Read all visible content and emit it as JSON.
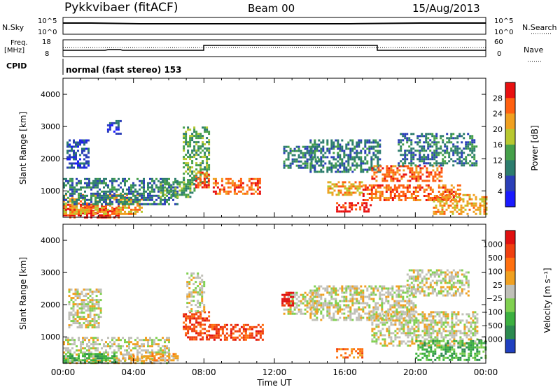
{
  "header": {
    "station": "Pykkvibaer (fitACF)",
    "beam": "Beam 00",
    "date": "15/Aug/2013"
  },
  "top_panels": {
    "nsky_label": "N.Sky",
    "nsky_ticks": [
      "10^5",
      "10^0"
    ],
    "nsearch_label": "N.Search",
    "nsearch_ticks": [
      "10^5",
      "10^0"
    ],
    "freq_label": "Freq.",
    "freq_unit": "[MHz]",
    "freq_ticks": [
      "18",
      "8"
    ],
    "nave_label": "Nave",
    "nave_ticks": [
      "60",
      "0"
    ],
    "cpid_label": "CPID",
    "cpid_text": "normal (fast stereo) 153"
  },
  "chart_data": [
    {
      "type": "heatmap",
      "title": "",
      "xlabel": "Time UT",
      "ylabel": "Slant Range [km]",
      "xlim_hours": [
        0,
        24
      ],
      "ylim": [
        180,
        4500
      ],
      "x_ticks": [
        "00:00",
        "04:00",
        "08:00",
        "12:00",
        "16:00",
        "20:00",
        "00:00"
      ],
      "y_ticks": [
        1000,
        2000,
        3000,
        4000
      ],
      "colorbar": {
        "label": "Power [dB]",
        "ticks": [
          "4",
          "8",
          "12",
          "16",
          "20",
          "24",
          "28"
        ],
        "colors": [
          "#1a1aff",
          "#2b3fb8",
          "#2d7d6e",
          "#46a04a",
          "#b8c830",
          "#f0a020",
          "#ff6010",
          "#e81010"
        ]
      },
      "regions": [
        {
          "t": [
            0.0,
            3.2
          ],
          "r": [
            200,
            600
          ],
          "level": 7
        },
        {
          "t": [
            0.0,
            4.5
          ],
          "r": [
            300,
            900
          ],
          "level": 5
        },
        {
          "t": [
            0.0,
            6.5
          ],
          "r": [
            600,
            1400
          ],
          "level": 2
        },
        {
          "t": [
            0.2,
            1.5
          ],
          "r": [
            1700,
            2600
          ],
          "level": 1
        },
        {
          "t": [
            2.5,
            3.3
          ],
          "r": [
            2800,
            3200
          ],
          "level": 1
        },
        {
          "t": [
            5.5,
            7.5
          ],
          "r": [
            800,
            1300
          ],
          "level": 3
        },
        {
          "t": [
            6.8,
            8.3
          ],
          "r": [
            1200,
            3000
          ],
          "level": 3
        },
        {
          "t": [
            7.5,
            8.3
          ],
          "r": [
            1100,
            1600
          ],
          "level": 6
        },
        {
          "t": [
            8.5,
            11.2
          ],
          "r": [
            900,
            1400
          ],
          "level": 6
        },
        {
          "t": [
            12.5,
            14.5
          ],
          "r": [
            1700,
            2400
          ],
          "level": 2
        },
        {
          "t": [
            14.0,
            18.0
          ],
          "r": [
            1600,
            2600
          ],
          "level": 2
        },
        {
          "t": [
            15.0,
            17.0
          ],
          "r": [
            900,
            1300
          ],
          "level": 5
        },
        {
          "t": [
            15.5,
            17.5
          ],
          "r": [
            350,
            650
          ],
          "level": 7
        },
        {
          "t": [
            17.0,
            22.5
          ],
          "r": [
            700,
            1200
          ],
          "level": 6
        },
        {
          "t": [
            17.5,
            21.5
          ],
          "r": [
            1300,
            1800
          ],
          "level": 6
        },
        {
          "t": [
            19.0,
            23.5
          ],
          "r": [
            1800,
            2800
          ],
          "level": 2
        },
        {
          "t": [
            21.0,
            24.0
          ],
          "r": [
            250,
            900
          ],
          "level": 5
        }
      ]
    },
    {
      "type": "heatmap",
      "title": "",
      "xlabel": "Time UT",
      "ylabel": "Slant Range [km]",
      "xlim_hours": [
        0,
        24
      ],
      "ylim": [
        180,
        4500
      ],
      "x_ticks": [
        "00:00",
        "04:00",
        "08:00",
        "12:00",
        "16:00",
        "20:00",
        "00:00"
      ],
      "y_ticks": [
        1000,
        2000,
        3000,
        4000
      ],
      "colorbar": {
        "label": "Velocity [m s⁻¹]",
        "ticks": [
          "1000",
          "500",
          "100",
          "25",
          "−25",
          "−100",
          "−500",
          "−1000"
        ],
        "colors": [
          "#2040c0",
          "#2c8a50",
          "#3cb040",
          "#80d050",
          "#c0c0b8",
          "#f0a020",
          "#ff7010",
          "#f04010",
          "#e01010"
        ]
      },
      "regions": [
        {
          "t": [
            0.0,
            6.0
          ],
          "r": [
            200,
            1000
          ],
          "level": 4
        },
        {
          "t": [
            0.3,
            2.2
          ],
          "r": [
            1300,
            2500
          ],
          "level": 4
        },
        {
          "t": [
            0.0,
            3.0
          ],
          "r": [
            200,
            500
          ],
          "level": 2
        },
        {
          "t": [
            3.0,
            6.5
          ],
          "r": [
            250,
            500
          ],
          "level": 5
        },
        {
          "t": [
            6.8,
            8.3
          ],
          "r": [
            900,
            1800
          ],
          "level": 7
        },
        {
          "t": [
            8.3,
            11.3
          ],
          "r": [
            900,
            1400
          ],
          "level": 7
        },
        {
          "t": [
            7.0,
            8.0
          ],
          "r": [
            1800,
            3000
          ],
          "level": 4
        },
        {
          "t": [
            12.5,
            14.5
          ],
          "r": [
            1700,
            2400
          ],
          "level": 4
        },
        {
          "t": [
            14.0,
            20.0
          ],
          "r": [
            1500,
            2600
          ],
          "level": 4
        },
        {
          "t": [
            15.5,
            17.0
          ],
          "r": [
            350,
            650
          ],
          "level": 6
        },
        {
          "t": [
            17.5,
            23.5
          ],
          "r": [
            700,
            1800
          ],
          "level": 4
        },
        {
          "t": [
            19.5,
            23.0
          ],
          "r": [
            2300,
            3100
          ],
          "level": 4
        },
        {
          "t": [
            20.0,
            24.0
          ],
          "r": [
            250,
            900
          ],
          "level": 2
        },
        {
          "t": [
            12.4,
            13.0
          ],
          "r": [
            2000,
            2400
          ],
          "level": 8
        }
      ]
    }
  ]
}
